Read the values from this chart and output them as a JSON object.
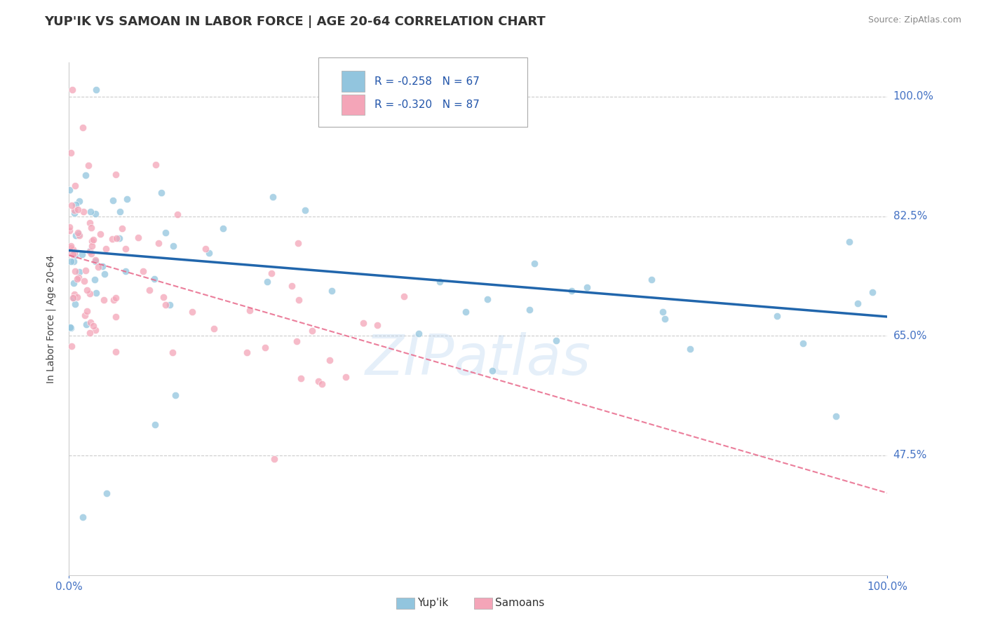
{
  "title": "YUP'IK VS SAMOAN IN LABOR FORCE | AGE 20-64 CORRELATION CHART",
  "source_text": "Source: ZipAtlas.com",
  "ylabel": "In Labor Force | Age 20-64",
  "xlim": [
    0.0,
    1.0
  ],
  "ylim": [
    0.3,
    1.05
  ],
  "yticks": [
    0.475,
    0.65,
    0.825,
    1.0
  ],
  "ytick_labels": [
    "47.5%",
    "65.0%",
    "82.5%",
    "100.0%"
  ],
  "xticks": [
    0.0,
    1.0
  ],
  "xtick_labels": [
    "0.0%",
    "100.0%"
  ],
  "legend_r1": "R = -0.258",
  "legend_n1": "N = 67",
  "legend_r2": "R = -0.320",
  "legend_n2": "N = 87",
  "color_blue": "#92c5de",
  "color_pink": "#f4a5b8",
  "color_blue_line": "#2166ac",
  "color_pink_line": "#e8688a",
  "watermark": "ZIPatlas",
  "background_color": "#ffffff",
  "grid_color": "#cccccc",
  "title_fontsize": 13,
  "axis_label_fontsize": 10,
  "tick_fontsize": 11,
  "legend_fontsize": 11,
  "blue_line_start_y": 0.775,
  "blue_line_end_y": 0.678,
  "pink_line_start_y": 0.768,
  "pink_line_end_y": 0.42,
  "seed": 42
}
